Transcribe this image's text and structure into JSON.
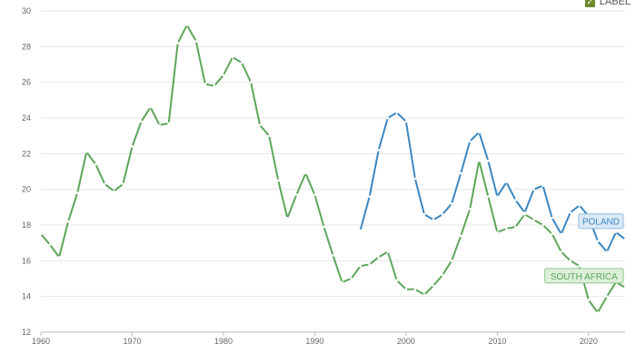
{
  "legend": {
    "label": "LABEL",
    "checked": true,
    "icon": "checkbox-checked-icon",
    "color": "#6e8c2b"
  },
  "chart_data": {
    "type": "line",
    "title": "",
    "xlabel": "",
    "ylabel": "",
    "xlim": [
      1960,
      2024
    ],
    "ylim": [
      12,
      30
    ],
    "x_ticks": [
      1960,
      1970,
      1980,
      1990,
      2000,
      2010,
      2020
    ],
    "y_ticks": [
      12,
      14,
      16,
      18,
      20,
      22,
      24,
      26,
      28,
      30
    ],
    "grid": "horizontal",
    "series": [
      {
        "name": "POLAND",
        "color": "#3b87c0",
        "label_fill": "#dbeaf7",
        "label_stroke": "#8fbde3",
        "x": [
          1995,
          1996,
          1997,
          1998,
          1999,
          2000,
          2001,
          2002,
          2003,
          2004,
          2005,
          2006,
          2007,
          2008,
          2009,
          2010,
          2011,
          2012,
          2013,
          2014,
          2015,
          2016,
          2017,
          2018,
          2019,
          2020,
          2021,
          2022,
          2023,
          2024
        ],
        "y": [
          17.7,
          19.6,
          22.2,
          24.0,
          24.3,
          23.8,
          20.6,
          18.6,
          18.3,
          18.6,
          19.2,
          20.9,
          22.7,
          23.2,
          21.6,
          19.6,
          20.4,
          19.4,
          18.7,
          20.0,
          20.2,
          18.4,
          17.5,
          18.7,
          19.1,
          18.5,
          17.1,
          16.5,
          17.6,
          17.2
        ]
      },
      {
        "name": "SOUTH AFRICA",
        "color": "#5da65a",
        "label_fill": "#dcefd9",
        "label_stroke": "#8ec98b",
        "x": [
          1960,
          1961,
          1962,
          1963,
          1964,
          1965,
          1966,
          1967,
          1968,
          1969,
          1970,
          1971,
          1972,
          1973,
          1974,
          1975,
          1976,
          1977,
          1978,
          1979,
          1980,
          1981,
          1982,
          1983,
          1984,
          1985,
          1986,
          1987,
          1988,
          1989,
          1990,
          1991,
          1992,
          1993,
          1994,
          1995,
          1996,
          1997,
          1998,
          1999,
          2000,
          2001,
          2002,
          2003,
          2004,
          2005,
          2006,
          2007,
          2008,
          2009,
          2010,
          2011,
          2012,
          2013,
          2014,
          2015,
          2016,
          2017,
          2018,
          2019,
          2020,
          2021,
          2022,
          2023,
          2024
        ],
        "y": [
          17.5,
          16.9,
          16.2,
          18.2,
          19.8,
          22.1,
          21.4,
          20.3,
          19.9,
          20.3,
          22.4,
          23.8,
          24.6,
          23.6,
          23.7,
          28.2,
          29.2,
          28.3,
          25.9,
          25.8,
          26.4,
          27.4,
          27.1,
          26.0,
          23.6,
          23.0,
          20.5,
          18.4,
          19.7,
          20.9,
          19.7,
          17.9,
          16.3,
          14.8,
          15.0,
          15.7,
          15.8,
          16.2,
          16.5,
          14.9,
          14.4,
          14.4,
          14.1,
          14.6,
          15.2,
          16.0,
          17.4,
          18.9,
          21.6,
          19.6,
          17.6,
          17.8,
          17.9,
          18.6,
          18.3,
          18.0,
          17.5,
          16.5,
          16.0,
          15.7,
          13.8,
          13.1,
          14.0,
          14.8,
          14.5
        ]
      }
    ]
  }
}
